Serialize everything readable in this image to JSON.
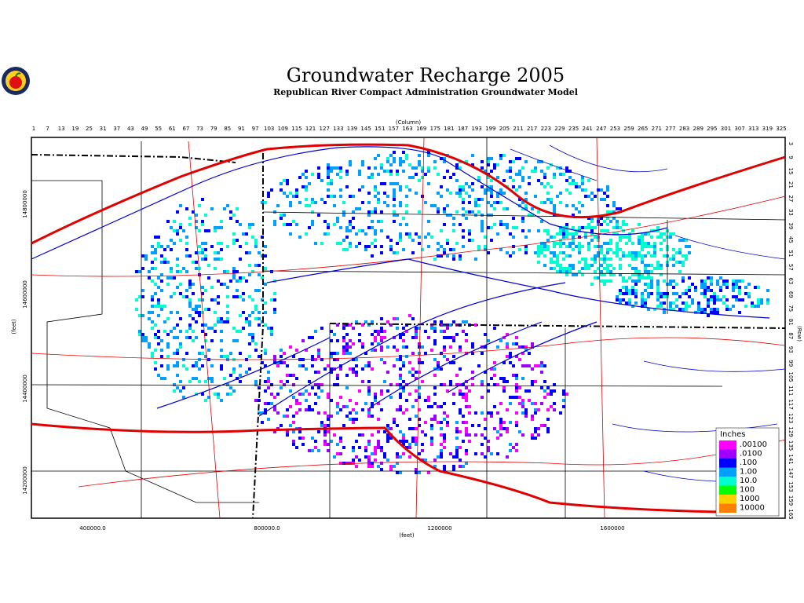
{
  "header": {
    "title": "Groundwater Recharge 2005",
    "subtitle": "Republican River Compact Administration Groundwater Model"
  },
  "axes": {
    "top": {
      "label": "(Column)",
      "ticks": [
        1,
        7,
        13,
        19,
        25,
        31,
        37,
        43,
        49,
        55,
        61,
        67,
        73,
        79,
        85,
        91,
        97,
        103,
        109,
        115,
        121,
        127,
        133,
        139,
        145,
        151,
        157,
        163,
        169,
        175,
        181,
        187,
        193,
        199,
        205,
        211,
        217,
        223,
        229,
        235,
        241,
        247,
        253,
        259,
        265,
        271,
        277,
        283,
        289,
        295,
        301,
        307,
        313,
        319,
        325
      ]
    },
    "right": {
      "label": "(Row)",
      "ticks": [
        3,
        9,
        15,
        21,
        27,
        33,
        39,
        45,
        51,
        57,
        63,
        69,
        75,
        81,
        87,
        93,
        99,
        105,
        111,
        117,
        123,
        129,
        135,
        141,
        147,
        153,
        159,
        165
      ]
    },
    "bottom": {
      "label": "(feet)",
      "ticks": [
        "400000.0",
        "800000.0",
        "1200000",
        "1600000"
      ]
    },
    "left": {
      "label": "(feet)",
      "ticks": [
        "14800000",
        "14600000",
        "14400000",
        "14200000"
      ]
    }
  },
  "legend": {
    "title": "Inches",
    "labels": [
      ".00100",
      ".0100",
      ".100",
      "1.00",
      "10.0",
      "100",
      "1000",
      "10000"
    ],
    "colors": [
      "#ff00ff",
      "#a000ff",
      "#0000ff",
      "#00a0ff",
      "#00ffd0",
      "#00ff00",
      "#ffd000",
      "#ff8000"
    ]
  }
}
